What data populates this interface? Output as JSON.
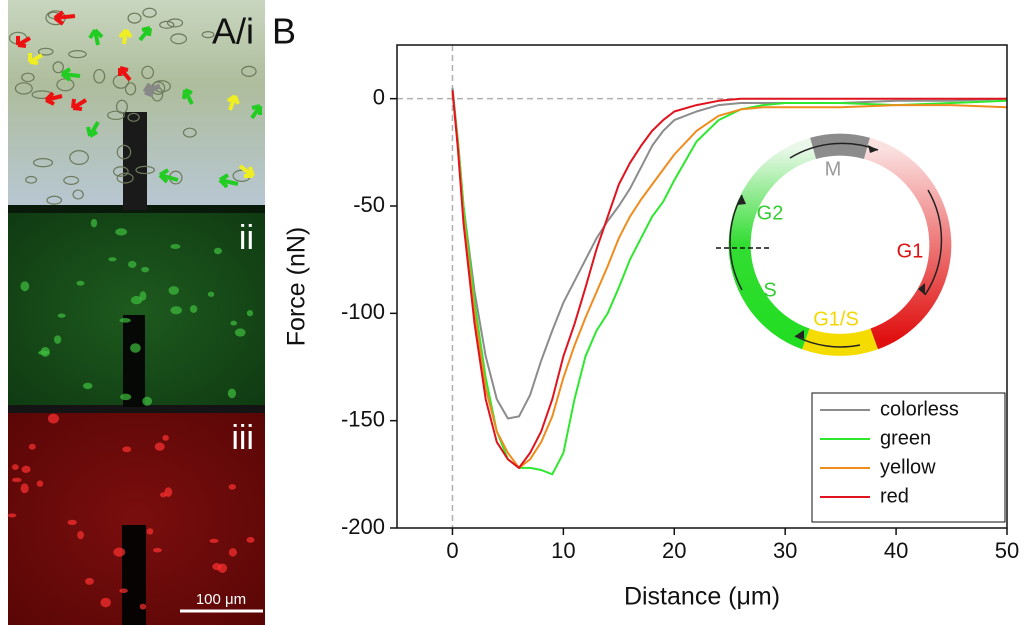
{
  "panel_a": {
    "label": "A/i",
    "sub_labels": [
      "ii",
      "iii"
    ],
    "scale_bar": "100 μm"
  },
  "chart_data": {
    "type": "line",
    "panel_label": "B",
    "x_label": "Distance (μm)",
    "y_label": "Force (nN)",
    "x": [
      0,
      0.5,
      1,
      2,
      3,
      4,
      5,
      6,
      7,
      8,
      9,
      10,
      11,
      12,
      13,
      14,
      15,
      16,
      17,
      18,
      19,
      20,
      22,
      24,
      26,
      28,
      30,
      35,
      40,
      45,
      50
    ],
    "series": [
      {
        "name": "colorless",
        "color": "#8c8c8c",
        "values": [
          5,
          -20,
          -50,
          -90,
          -120,
          -140,
          -149,
          -148,
          -138,
          -122,
          -108,
          -95,
          -85,
          -75,
          -65,
          -57,
          -50,
          -42,
          -32,
          -22,
          -15,
          -10,
          -6,
          -3,
          -2,
          -2,
          -2,
          -2,
          -1,
          -1,
          0
        ]
      },
      {
        "name": "green",
        "color": "#2ee82e",
        "values": [
          3,
          -20,
          -50,
          -95,
          -130,
          -155,
          -168,
          -172,
          -172,
          -173,
          -175,
          -165,
          -140,
          -120,
          -108,
          -100,
          -88,
          -75,
          -65,
          -55,
          -48,
          -38,
          -20,
          -10,
          -5,
          -3,
          -2,
          -2,
          -3,
          -2,
          -1
        ]
      },
      {
        "name": "yellow",
        "color": "#f08c1e",
        "values": [
          3,
          -22,
          -55,
          -100,
          -135,
          -155,
          -165,
          -172,
          -168,
          -160,
          -148,
          -130,
          -115,
          -102,
          -90,
          -78,
          -65,
          -55,
          -47,
          -40,
          -33,
          -26,
          -15,
          -8,
          -5,
          -4,
          -4,
          -4,
          -3,
          -3,
          -4
        ]
      },
      {
        "name": "red",
        "color": "#e0141e",
        "values": [
          4,
          -24,
          -58,
          -105,
          -140,
          -160,
          -168,
          -172,
          -165,
          -155,
          -140,
          -120,
          -105,
          -88,
          -70,
          -55,
          -40,
          -30,
          -22,
          -15,
          -10,
          -6,
          -3,
          -1,
          0,
          0,
          0,
          0,
          0,
          0,
          0
        ]
      }
    ],
    "xlim": [
      -5,
      50
    ],
    "xticks": [
      0,
      10,
      20,
      30,
      40,
      50
    ],
    "ylim": [
      -200,
      25
    ],
    "yticks": [
      0,
      -50,
      -100,
      -150,
      -200
    ],
    "reference_lines": {
      "x": 0,
      "y": 0
    },
    "legend": "lower right",
    "inset": {
      "labels": [
        {
          "text": "M",
          "color": "#9a9a9a"
        },
        {
          "text": "G2",
          "color": "#33cc33"
        },
        {
          "text": "G1",
          "color": "#dd1111"
        },
        {
          "text": "S",
          "color": "#33cc33"
        },
        {
          "text": "G1/S",
          "color": "#f2d800"
        }
      ]
    }
  }
}
